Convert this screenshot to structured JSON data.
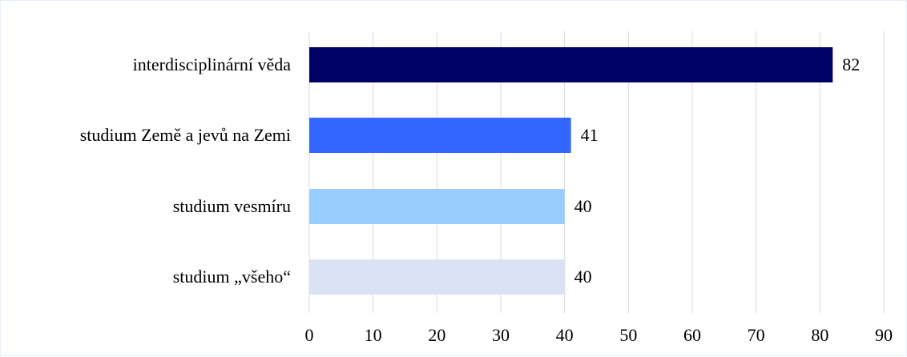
{
  "chart_data": {
    "type": "bar",
    "orientation": "horizontal",
    "categories": [
      "interdisciplinární věda",
      "studium Země a jevů na Zemi",
      "studium vesmíru",
      "studium „všeho“"
    ],
    "values": [
      82,
      41,
      40,
      40
    ],
    "colors": [
      "#000066",
      "#3366ff",
      "#99ccff",
      "#dae3f3"
    ],
    "xlim": [
      0,
      90
    ],
    "xticks": [
      0,
      10,
      20,
      30,
      40,
      50,
      60,
      70,
      80,
      90
    ],
    "grid": true,
    "legend": false,
    "data_labels": true
  }
}
